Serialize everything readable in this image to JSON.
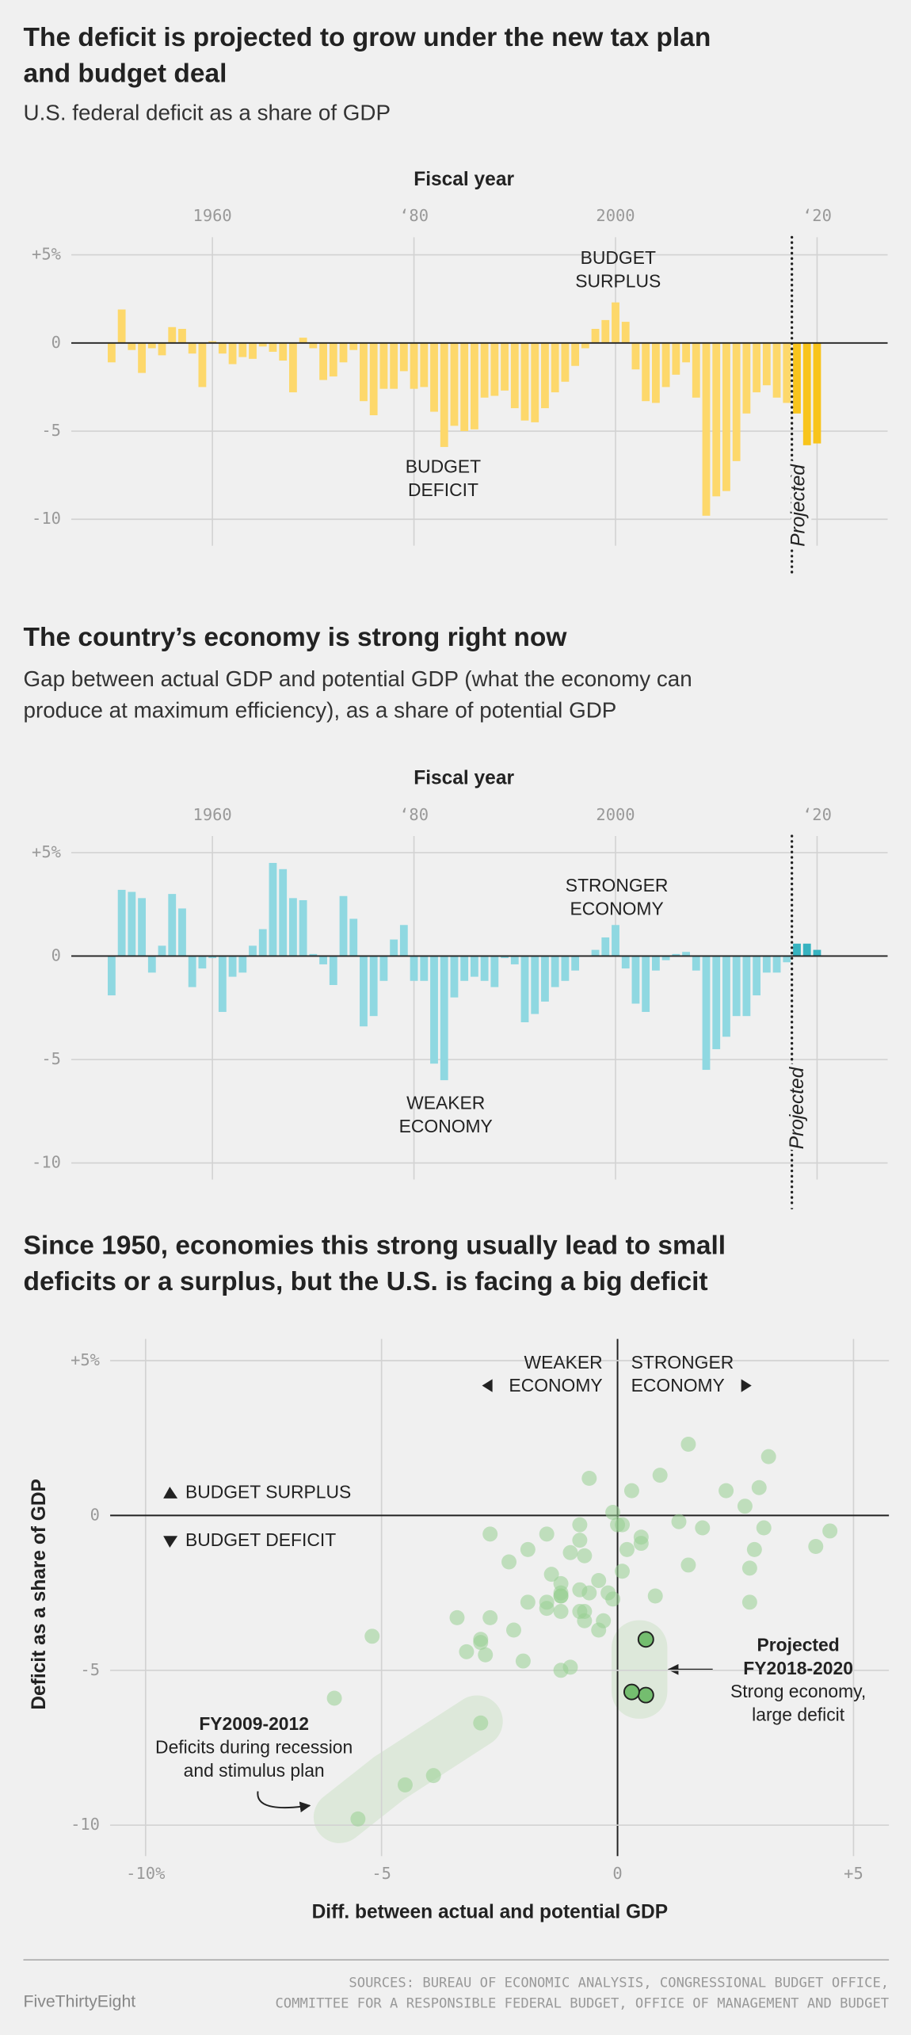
{
  "chart_data": [
    {
      "type": "bar",
      "title": [
        "The deficit is projected to grow under the new tax plan",
        "and budget deal"
      ],
      "subtitle": [
        "U.S. federal deficit as a share of GDP"
      ],
      "x_label": "Fiscal year",
      "x": [
        1950,
        1951,
        1952,
        1953,
        1954,
        1955,
        1956,
        1957,
        1958,
        1959,
        1960,
        1961,
        1962,
        1963,
        1964,
        1965,
        1966,
        1967,
        1968,
        1969,
        1970,
        1971,
        1972,
        1973,
        1974,
        1975,
        1976,
        1977,
        1978,
        1979,
        1980,
        1981,
        1982,
        1983,
        1984,
        1985,
        1986,
        1987,
        1988,
        1989,
        1990,
        1991,
        1992,
        1993,
        1994,
        1995,
        1996,
        1997,
        1998,
        1999,
        2000,
        2001,
        2002,
        2003,
        2004,
        2005,
        2006,
        2007,
        2008,
        2009,
        2010,
        2011,
        2012,
        2013,
        2014,
        2015,
        2016,
        2017,
        2018,
        2019,
        2020
      ],
      "values": [
        -1.1,
        1.9,
        -0.4,
        -1.7,
        -0.3,
        -0.7,
        0.9,
        0.8,
        -0.6,
        -2.5,
        0.1,
        -0.6,
        -1.2,
        -0.8,
        -0.9,
        -0.2,
        -0.5,
        -1.0,
        -2.8,
        0.3,
        -0.3,
        -2.1,
        -1.9,
        -1.1,
        -0.4,
        -3.3,
        -4.1,
        -2.6,
        -2.6,
        -1.6,
        -2.6,
        -2.5,
        -3.9,
        -5.9,
        -4.7,
        -5.0,
        -4.9,
        -3.1,
        -3.0,
        -2.7,
        -3.7,
        -4.4,
        -4.5,
        -3.7,
        -2.8,
        -2.2,
        -1.3,
        -0.3,
        0.8,
        1.3,
        2.3,
        1.2,
        -1.5,
        -3.3,
        -3.4,
        -2.5,
        -1.8,
        -1.1,
        -3.1,
        -9.8,
        -8.7,
        -8.4,
        -6.7,
        -4.0,
        -2.8,
        -2.4,
        -3.1,
        -3.4,
        -4.0,
        -5.8,
        -5.7
      ],
      "colors": [
        "#fdd86b",
        "#fdd86b",
        "#fdd86b",
        "#fdd86b",
        "#fdd86b",
        "#fdd86b",
        "#fdd86b",
        "#fdd86b",
        "#fdd86b",
        "#fdd86b",
        "#fdd86b",
        "#fdd86b",
        "#fdd86b",
        "#fdd86b",
        "#fdd86b",
        "#fdd86b",
        "#fdd86b",
        "#fdd86b",
        "#fdd86b",
        "#fdd86b",
        "#fdd86b",
        "#fdd86b",
        "#fdd86b",
        "#fdd86b",
        "#fdd86b",
        "#fdd86b",
        "#fdd86b",
        "#fdd86b",
        "#fdd86b",
        "#fdd86b",
        "#fdd86b",
        "#fdd86b",
        "#fdd86b",
        "#fdd86b",
        "#fdd86b",
        "#fdd86b",
        "#fdd86b",
        "#fdd86b",
        "#fdd86b",
        "#fdd86b",
        "#fdd86b",
        "#fdd86b",
        "#fdd86b",
        "#fdd86b",
        "#fdd86b",
        "#fdd86b",
        "#fdd86b",
        "#fdd86b",
        "#fdd86b",
        "#fdd86b",
        "#fdd86b",
        "#fdd86b",
        "#fdd86b",
        "#fdd86b",
        "#fdd86b",
        "#fdd86b",
        "#fdd86b",
        "#fdd86b",
        "#fdd86b",
        "#fdd86b",
        "#fdd86b",
        "#fdd86b",
        "#fdd86b",
        "#fdd86b",
        "#fdd86b",
        "#fdd86b",
        "#fdd86b",
        "#fdd86b",
        "#f8c41c",
        "#f8c41c",
        "#f8c41c"
      ],
      "xlim": [
        1946,
        2027
      ],
      "xticks": [
        1960,
        {
          "value": 1980,
          "label": "‘80"
        },
        2000,
        {
          "value": 2020,
          "label": "‘20"
        }
      ],
      "ylim": [
        -11.5,
        6
      ],
      "yticks": [
        {
          "value": 5,
          "label": "+5%"
        },
        0,
        -5,
        -10
      ],
      "grid": true,
      "annotations": [
        {
          "text": [
            "BUDGET",
            "SURPLUS"
          ]
        },
        {
          "text": [
            "BUDGET",
            "DEFICIT"
          ]
        },
        {
          "text": [
            "Projected"
          ]
        }
      ]
    },
    {
      "type": "bar",
      "title": [
        "The country’s economy is strong right now"
      ],
      "subtitle": [
        "Gap between actual GDP and potential GDP (what the economy can",
        "produce at maximum efficiency), as a share of potential GDP"
      ],
      "x_label": "Fiscal year",
      "x": [
        1950,
        1951,
        1952,
        1953,
        1954,
        1955,
        1956,
        1957,
        1958,
        1959,
        1960,
        1961,
        1962,
        1963,
        1964,
        1965,
        1966,
        1967,
        1968,
        1969,
        1970,
        1971,
        1972,
        1973,
        1974,
        1975,
        1976,
        1977,
        1978,
        1979,
        1980,
        1981,
        1982,
        1983,
        1984,
        1985,
        1986,
        1987,
        1988,
        1989,
        1990,
        1991,
        1992,
        1993,
        1994,
        1995,
        1996,
        1997,
        1998,
        1999,
        2000,
        2001,
        2002,
        2003,
        2004,
        2005,
        2006,
        2007,
        2008,
        2009,
        2010,
        2011,
        2012,
        2013,
        2014,
        2015,
        2016,
        2017,
        2018,
        2019,
        2020
      ],
      "values": [
        -1.9,
        3.2,
        3.1,
        2.8,
        -0.8,
        0.5,
        3.0,
        2.3,
        -1.5,
        -0.6,
        -0.1,
        -2.7,
        -1.0,
        -0.8,
        0.5,
        1.3,
        4.5,
        4.2,
        2.8,
        2.7,
        0.1,
        -0.4,
        -1.4,
        2.9,
        1.8,
        -3.4,
        -2.9,
        -1.2,
        0.8,
        1.5,
        -1.2,
        -1.2,
        -5.2,
        -6.0,
        -2.0,
        -1.2,
        -1.0,
        -1.2,
        -1.5,
        -0.1,
        -0.4,
        -3.2,
        -2.8,
        -2.2,
        -1.5,
        -1.2,
        -0.7,
        0.0,
        0.3,
        0.9,
        1.5,
        -0.6,
        -2.3,
        -2.7,
        -0.7,
        -0.2,
        0.1,
        0.2,
        -0.7,
        -5.5,
        -4.5,
        -3.9,
        -2.9,
        -2.9,
        -1.9,
        -0.8,
        -0.8,
        -0.3,
        0.6,
        0.6,
        0.3
      ],
      "colors": [
        "#8fd8e1",
        "#8fd8e1",
        "#8fd8e1",
        "#8fd8e1",
        "#8fd8e1",
        "#8fd8e1",
        "#8fd8e1",
        "#8fd8e1",
        "#8fd8e1",
        "#8fd8e1",
        "#8fd8e1",
        "#8fd8e1",
        "#8fd8e1",
        "#8fd8e1",
        "#8fd8e1",
        "#8fd8e1",
        "#8fd8e1",
        "#8fd8e1",
        "#8fd8e1",
        "#8fd8e1",
        "#8fd8e1",
        "#8fd8e1",
        "#8fd8e1",
        "#8fd8e1",
        "#8fd8e1",
        "#8fd8e1",
        "#8fd8e1",
        "#8fd8e1",
        "#8fd8e1",
        "#8fd8e1",
        "#8fd8e1",
        "#8fd8e1",
        "#8fd8e1",
        "#8fd8e1",
        "#8fd8e1",
        "#8fd8e1",
        "#8fd8e1",
        "#8fd8e1",
        "#8fd8e1",
        "#8fd8e1",
        "#8fd8e1",
        "#8fd8e1",
        "#8fd8e1",
        "#8fd8e1",
        "#8fd8e1",
        "#8fd8e1",
        "#8fd8e1",
        "#8fd8e1",
        "#8fd8e1",
        "#8fd8e1",
        "#8fd8e1",
        "#8fd8e1",
        "#8fd8e1",
        "#8fd8e1",
        "#8fd8e1",
        "#8fd8e1",
        "#8fd8e1",
        "#8fd8e1",
        "#8fd8e1",
        "#8fd8e1",
        "#8fd8e1",
        "#8fd8e1",
        "#8fd8e1",
        "#8fd8e1",
        "#8fd8e1",
        "#8fd8e1",
        "#8fd8e1",
        "#8fd8e1",
        "#37b3c0",
        "#37b3c0",
        "#37b3c0"
      ],
      "xlim": [
        1946,
        2027
      ],
      "xticks": [
        1960,
        {
          "value": 1980,
          "label": "‘80"
        },
        2000,
        {
          "value": 2020,
          "label": "‘20"
        }
      ],
      "ylim": [
        -10.8,
        5.8
      ],
      "yticks": [
        {
          "value": 5,
          "label": "+5%"
        },
        0,
        -5,
        -10
      ],
      "grid": true,
      "annotations": [
        {
          "text": [
            "STRONGER",
            "ECONOMY"
          ]
        },
        {
          "text": [
            "WEAKER",
            "ECONOMY"
          ]
        },
        {
          "text": [
            "Projected"
          ]
        }
      ]
    },
    {
      "type": "scatter",
      "title": [
        "Since 1950, economies this strong usually lead to small",
        "deficits or a surplus, but the U.S. is facing a big deficit"
      ],
      "x_label": "Diff. between actual and potential GDP",
      "y_label": "Deficit as a share of GDP",
      "x": [
        -1.9,
        3.2,
        3.1,
        2.8,
        -0.8,
        0.5,
        3.0,
        2.3,
        -1.5,
        -0.6,
        -0.1,
        -2.7,
        -1.0,
        -0.8,
        0.5,
        1.3,
        4.5,
        4.2,
        2.8,
        2.7,
        0.1,
        -0.4,
        -1.4,
        2.9,
        1.8,
        -3.4,
        -2.9,
        -1.2,
        0.8,
        1.5,
        -1.2,
        -1.2,
        -5.2,
        -6.0,
        -2.0,
        -1.2,
        -1.0,
        -1.2,
        -1.5,
        -0.1,
        -0.4,
        -3.2,
        -2.8,
        -2.2,
        -1.5,
        -1.2,
        -0.7,
        0.0,
        0.3,
        0.9,
        1.5,
        -0.6,
        -2.3,
        -2.7,
        -0.7,
        -0.2,
        0.1,
        0.2,
        -0.7,
        -5.5,
        -4.5,
        -3.9,
        -2.9,
        -2.9,
        -1.9,
        -0.8,
        -0.8,
        -0.3,
        0.6,
        0.6,
        0.3
      ],
      "y": [
        -1.1,
        1.9,
        -0.4,
        -1.7,
        -0.3,
        -0.7,
        0.9,
        0.8,
        -0.6,
        -2.5,
        0.1,
        -0.6,
        -1.2,
        -0.8,
        -0.9,
        -0.2,
        -0.5,
        -1.0,
        -2.8,
        0.3,
        -0.3,
        -2.1,
        -1.9,
        -1.1,
        -0.4,
        -3.3,
        -4.1,
        -2.6,
        -2.6,
        -1.6,
        -2.6,
        -2.5,
        -3.9,
        -5.9,
        -4.7,
        -5.0,
        -4.9,
        -3.1,
        -3.0,
        -2.7,
        -3.7,
        -4.4,
        -4.5,
        -3.7,
        -2.8,
        -2.2,
        -1.3,
        -0.3,
        0.8,
        1.3,
        2.3,
        1.2,
        -1.5,
        -3.3,
        -3.4,
        -2.5,
        -1.8,
        -1.1,
        -3.1,
        -9.8,
        -8.7,
        -8.4,
        -6.7,
        -4.0,
        -2.8,
        -2.4,
        -3.1,
        -3.4,
        -4.0,
        -5.8,
        -5.7
      ],
      "colors": [
        "#97cf91",
        "#97cf91",
        "#97cf91",
        "#97cf91",
        "#97cf91",
        "#97cf91",
        "#97cf91",
        "#97cf91",
        "#97cf91",
        "#97cf91",
        "#97cf91",
        "#97cf91",
        "#97cf91",
        "#97cf91",
        "#97cf91",
        "#97cf91",
        "#97cf91",
        "#97cf91",
        "#97cf91",
        "#97cf91",
        "#97cf91",
        "#97cf91",
        "#97cf91",
        "#97cf91",
        "#97cf91",
        "#97cf91",
        "#97cf91",
        "#97cf91",
        "#97cf91",
        "#97cf91",
        "#97cf91",
        "#97cf91",
        "#97cf91",
        "#97cf91",
        "#97cf91",
        "#97cf91",
        "#97cf91",
        "#97cf91",
        "#97cf91",
        "#97cf91",
        "#97cf91",
        "#97cf91",
        "#97cf91",
        "#97cf91",
        "#97cf91",
        "#97cf91",
        "#97cf91",
        "#97cf91",
        "#97cf91",
        "#97cf91",
        "#97cf91",
        "#97cf91",
        "#97cf91",
        "#97cf91",
        "#97cf91",
        "#97cf91",
        "#97cf91",
        "#97cf91",
        "#97cf91",
        "#97cf91",
        "#97cf91",
        "#97cf91",
        "#97cf91",
        "#97cf91",
        "#97cf91",
        "#97cf91",
        "#97cf91",
        "#97cf91",
        "#74bd6f",
        "#74bd6f",
        "#74bd6f"
      ],
      "xlim": [
        -10.75,
        5.75
      ],
      "xticks": [
        {
          "value": -10,
          "label": "-10%"
        },
        -5,
        0,
        {
          "value": 5,
          "label": "+5"
        }
      ],
      "ylim": [
        -11,
        5.7
      ],
      "yticks": [
        {
          "value": 5,
          "label": "+5%"
        },
        0,
        -5,
        -10
      ],
      "grid": true,
      "annotations": [
        {
          "text": [
            "WEAKER",
            "ECONOMY"
          ]
        },
        {
          "text": [
            "STRONGER",
            "ECONOMY"
          ]
        },
        {
          "text": [
            "BUDGET SURPLUS"
          ]
        },
        {
          "text": [
            "BUDGET DEFICIT"
          ]
        },
        {
          "title": [
            "Projected",
            "FY2018-2020"
          ],
          "text": [
            "Strong economy,",
            "large deficit"
          ]
        },
        {
          "title": [
            "FY2009-2012"
          ],
          "text": [
            "Deficits during recession",
            "and stimulus plan"
          ]
        }
      ]
    }
  ],
  "footer": {
    "brand": "FiveThirtyEight",
    "sources": [
      "SOURCES: BUREAU OF ECONOMIC ANALYSIS, CONGRESSIONAL BUDGET OFFICE,",
      "COMMITTEE FOR A RESPONSIBLE FEDERAL BUDGET, OFFICE OF MANAGEMENT AND BUDGET"
    ]
  }
}
